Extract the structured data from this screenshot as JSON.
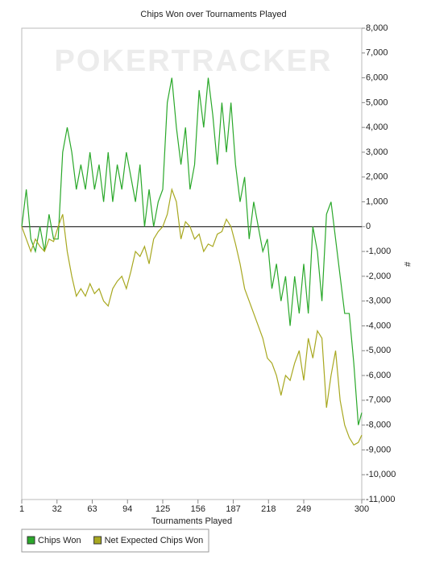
{
  "chart_data": {
    "type": "line",
    "title": "Chips Won over Tournaments Played",
    "watermark": "POKERTRACKER",
    "x_label": "Tournaments Played",
    "y_label": "#",
    "x": [
      1,
      5,
      9,
      13,
      17,
      21,
      25,
      29,
      33,
      37,
      41,
      45,
      49,
      53,
      57,
      61,
      65,
      69,
      73,
      77,
      81,
      85,
      89,
      93,
      97,
      101,
      105,
      109,
      113,
      117,
      121,
      125,
      129,
      133,
      137,
      141,
      145,
      149,
      153,
      157,
      161,
      165,
      169,
      173,
      177,
      181,
      185,
      189,
      193,
      197,
      201,
      205,
      209,
      213,
      217,
      221,
      225,
      229,
      233,
      237,
      241,
      245,
      249,
      253,
      257,
      261,
      265,
      269,
      273,
      277,
      281,
      285,
      289,
      293,
      297,
      300
    ],
    "series": [
      {
        "name": "Chips Won",
        "color": "#2aa82a",
        "values": [
          0,
          1500,
          -500,
          -1000,
          0,
          -1000,
          500,
          -500,
          -500,
          3000,
          4000,
          3000,
          1500,
          2500,
          1500,
          3000,
          1500,
          2500,
          1000,
          3000,
          1000,
          2500,
          1500,
          3000,
          2000,
          1000,
          2500,
          0,
          1500,
          0,
          1000,
          1500,
          5000,
          6000,
          4000,
          2500,
          4000,
          1500,
          2500,
          5500,
          4000,
          6000,
          4500,
          2500,
          5000,
          3000,
          5000,
          2500,
          1000,
          2000,
          -500,
          1000,
          0,
          -1000,
          -500,
          -2500,
          -1500,
          -3000,
          -2000,
          -4000,
          -2000,
          -3500,
          -1500,
          -3500,
          0,
          -1000,
          -3000,
          500,
          1000,
          -500,
          -2000,
          -3500,
          -3500,
          -5500,
          -8000,
          -7500
        ]
      },
      {
        "name": "Net Expected Chips Won",
        "color": "#a8a820",
        "values": [
          0,
          -500,
          -1000,
          -500,
          -800,
          -1000,
          -500,
          -600,
          0,
          500,
          -1000,
          -2000,
          -2800,
          -2500,
          -2800,
          -2300,
          -2700,
          -2500,
          -3000,
          -3200,
          -2500,
          -2200,
          -2000,
          -2500,
          -1800,
          -1000,
          -1200,
          -800,
          -1500,
          -500,
          -200,
          0,
          500,
          1500,
          1000,
          -500,
          200,
          0,
          -500,
          -300,
          -1000,
          -700,
          -800,
          -300,
          -200,
          300,
          0,
          -700,
          -1500,
          -2500,
          -3000,
          -3500,
          -4000,
          -4500,
          -5300,
          -5500,
          -6000,
          -6800,
          -6000,
          -6200,
          -5500,
          -5000,
          -6200,
          -4500,
          -5300,
          -4200,
          -4500,
          -7300,
          -6000,
          -5000,
          -7000,
          -8000,
          -8500,
          -8800,
          -8700,
          -8400
        ]
      }
    ],
    "xlim": [
      1,
      300
    ],
    "xticks": [
      1,
      32,
      63,
      94,
      125,
      156,
      187,
      218,
      249,
      300
    ],
    "ylim": [
      -11000,
      8000
    ],
    "yticks": [
      {
        "value": -11000,
        "label": "-11,000"
      },
      {
        "value": -10000,
        "label": "-10,000"
      },
      {
        "value": -9000,
        "label": "-9,000"
      },
      {
        "value": -8000,
        "label": "-8,000"
      },
      {
        "value": -7000,
        "label": "-7,000"
      },
      {
        "value": -6000,
        "label": "-6,000"
      },
      {
        "value": -5000,
        "label": "-5,000"
      },
      {
        "value": -4000,
        "label": "-4,000"
      },
      {
        "value": -3000,
        "label": "-3,000"
      },
      {
        "value": -2000,
        "label": "-2,000"
      },
      {
        "value": -1000,
        "label": "-1,000"
      },
      0,
      {
        "value": 1000,
        "label": "1,000"
      },
      {
        "value": 2000,
        "label": "2,000"
      },
      {
        "value": 3000,
        "label": "3,000"
      },
      {
        "value": 4000,
        "label": "4,000"
      },
      {
        "value": 5000,
        "label": "5,000"
      },
      {
        "value": 6000,
        "label": "6,000"
      },
      {
        "value": 7000,
        "label": "7,000"
      },
      {
        "value": 8000,
        "label": "8,000"
      }
    ],
    "zero_line": true,
    "grid": false
  }
}
